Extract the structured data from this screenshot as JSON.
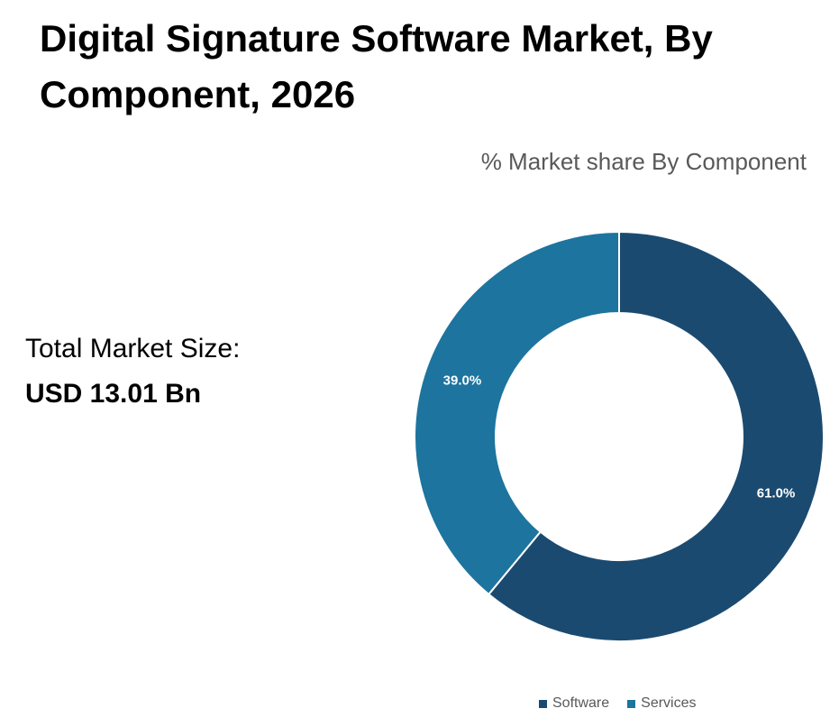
{
  "title": "Digital Signature Software Market, By Component, 2026",
  "subtitle": "% Market share By Component",
  "total_market": {
    "label": "Total Market Size:",
    "value": "USD 13.01 Bn"
  },
  "chart_data": {
    "type": "pie",
    "variant": "donut",
    "title": "% Market share By Component",
    "categories": [
      "Software",
      "Services"
    ],
    "values": [
      61.0,
      39.0
    ],
    "data_labels": [
      "61.0%",
      "39.0%"
    ],
    "colors": [
      "#1b4a70",
      "#1d749e"
    ],
    "legend": "bottom"
  }
}
